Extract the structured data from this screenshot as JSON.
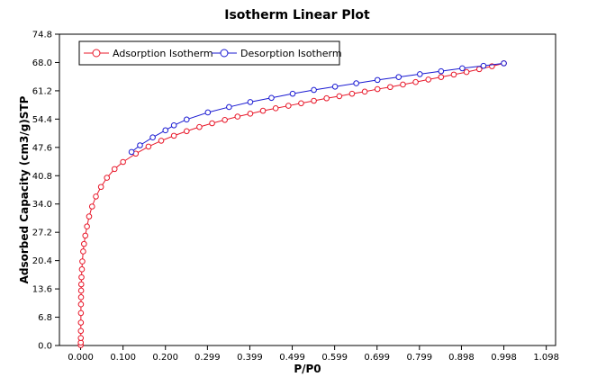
{
  "chart_data": {
    "type": "line",
    "title": "Isotherm Linear Plot",
    "xlabel": "P/P0",
    "ylabel": "Adsorbed Capacity (cm3/g)STP",
    "xlim": [
      -0.05,
      1.12
    ],
    "ylim": [
      0.0,
      74.8
    ],
    "x_ticks": [
      0.0,
      0.1,
      0.2,
      0.299,
      0.399,
      0.499,
      0.599,
      0.699,
      0.799,
      0.898,
      0.998,
      1.098
    ],
    "x_tick_labels": [
      "0.000",
      "0.100",
      "0.200",
      "0.299",
      "0.399",
      "0.499",
      "0.599",
      "0.699",
      "0.799",
      "0.898",
      "0.998",
      "1.098"
    ],
    "y_ticks": [
      0.0,
      6.8,
      13.6,
      20.4,
      27.2,
      34.0,
      40.8,
      47.6,
      54.4,
      61.2,
      68.0,
      74.8
    ],
    "y_tick_labels": [
      "0.0",
      "6.8",
      "13.6",
      "20.4",
      "27.2",
      "34.0",
      "40.8",
      "47.6",
      "54.4",
      "61.2",
      "68.0",
      "74.8"
    ],
    "grid": false,
    "legend_position": "top-left",
    "series": [
      {
        "name": "Adsorption Isotherm",
        "color": "#e8182a",
        "x": [
          0.0002,
          0.0003,
          0.0004,
          0.0005,
          0.0006,
          0.0007,
          0.0008,
          0.001,
          0.0012,
          0.0015,
          0.002,
          0.003,
          0.004,
          0.006,
          0.008,
          0.011,
          0.015,
          0.02,
          0.027,
          0.036,
          0.048,
          0.062,
          0.08,
          0.1,
          0.13,
          0.16,
          0.19,
          0.22,
          0.25,
          0.28,
          0.31,
          0.34,
          0.37,
          0.4,
          0.43,
          0.46,
          0.49,
          0.52,
          0.55,
          0.58,
          0.61,
          0.64,
          0.67,
          0.7,
          0.73,
          0.76,
          0.79,
          0.82,
          0.85,
          0.88,
          0.91,
          0.94,
          0.97,
          0.998
        ],
        "y": [
          0.1,
          0.7,
          1.8,
          3.5,
          5.5,
          7.8,
          9.9,
          11.6,
          13.2,
          14.7,
          16.4,
          18.3,
          20.2,
          22.6,
          24.4,
          26.4,
          28.6,
          31.0,
          33.4,
          35.8,
          38.1,
          40.3,
          42.4,
          44.1,
          46.1,
          47.8,
          49.2,
          50.4,
          51.5,
          52.5,
          53.4,
          54.2,
          55.0,
          55.7,
          56.4,
          57.0,
          57.6,
          58.2,
          58.8,
          59.4,
          59.9,
          60.5,
          61.0,
          61.6,
          62.1,
          62.7,
          63.3,
          63.9,
          64.5,
          65.1,
          65.7,
          66.4,
          67.1,
          67.8
        ]
      },
      {
        "name": "Desorption Isotherm",
        "color": "#1a1ad2",
        "x": [
          0.998,
          0.95,
          0.9,
          0.85,
          0.8,
          0.75,
          0.7,
          0.65,
          0.6,
          0.55,
          0.5,
          0.45,
          0.4,
          0.35,
          0.3,
          0.25,
          0.22,
          0.2,
          0.17,
          0.14,
          0.12
        ],
        "y": [
          67.8,
          67.2,
          66.6,
          65.9,
          65.2,
          64.5,
          63.8,
          63.0,
          62.2,
          61.4,
          60.5,
          59.5,
          58.5,
          57.3,
          56.0,
          54.3,
          52.9,
          51.7,
          50.0,
          48.1,
          46.5
        ]
      }
    ]
  }
}
